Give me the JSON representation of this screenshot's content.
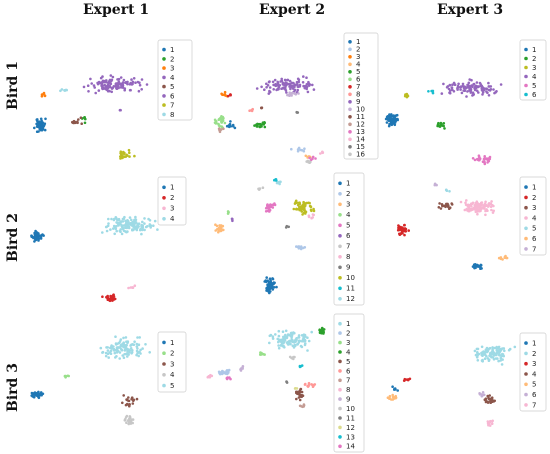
{
  "figure": {
    "column_titles": [
      "Expert 1",
      "Expert 2",
      "Expert 3"
    ],
    "row_titles": [
      "Bird 1",
      "Bird 2",
      "Bird 3"
    ]
  },
  "palette": [
    "#1f77b4",
    "#aec7e8",
    "#ff7f0e",
    "#ffbb78",
    "#2ca02c",
    "#98df8a",
    "#d62728",
    "#ff9896",
    "#9467bd",
    "#c5b0d5",
    "#8c564b",
    "#c49c94",
    "#e377c2",
    "#f7b6d2",
    "#7f7f7f",
    "#c7c7c7",
    "#bcbd22",
    "#dbdb8d",
    "#17becf",
    "#9edae5"
  ],
  "chart_data": [
    {
      "type": "scatter",
      "row": "Bird 1",
      "column": "Expert 1",
      "legend": [
        "1",
        "2",
        "3",
        "4",
        "5",
        "6",
        "7",
        "8"
      ],
      "series_colors": [
        "#1f77b4",
        "#2ca02c",
        "#ff7f0e",
        "#9467bd",
        "#8c564b",
        "#9467bd",
        "#bcbd22",
        "#9edae5"
      ]
    },
    {
      "type": "scatter",
      "row": "Bird 1",
      "column": "Expert 2",
      "legend": [
        "1",
        "2",
        "3",
        "4",
        "5",
        "6",
        "7",
        "8",
        "9",
        "10",
        "11",
        "12",
        "13",
        "14",
        "15",
        "16"
      ],
      "series_colors": [
        "#1f77b4",
        "#aec7e8",
        "#ff7f0e",
        "#ffbb78",
        "#2ca02c",
        "#98df8a",
        "#d62728",
        "#ff9896",
        "#9467bd",
        "#c5b0d5",
        "#8c564b",
        "#c49c94",
        "#e377c2",
        "#f7b6d2",
        "#7f7f7f",
        "#c7c7c7"
      ]
    },
    {
      "type": "scatter",
      "row": "Bird 1",
      "column": "Expert 3",
      "legend": [
        "1",
        "2",
        "3",
        "4",
        "5",
        "6"
      ],
      "series_colors": [
        "#1f77b4",
        "#2ca02c",
        "#bcbd22",
        "#9467bd",
        "#e377c2",
        "#17becf"
      ]
    },
    {
      "type": "scatter",
      "row": "Bird 2",
      "column": "Expert 1",
      "legend": [
        "1",
        "2",
        "3",
        "4"
      ],
      "series_colors": [
        "#1f77b4",
        "#d62728",
        "#f7b6d2",
        "#9edae5"
      ]
    },
    {
      "type": "scatter",
      "row": "Bird 2",
      "column": "Expert 2",
      "legend": [
        "1",
        "2",
        "3",
        "4",
        "5",
        "6",
        "7",
        "8",
        "9",
        "10",
        "11",
        "12"
      ],
      "series_colors": [
        "#1f77b4",
        "#aec7e8",
        "#ffbb78",
        "#98df8a",
        "#e377c2",
        "#9467bd",
        "#c7c7c7",
        "#f7b6d2",
        "#7f7f7f",
        "#bcbd22",
        "#17becf",
        "#9edae5"
      ]
    },
    {
      "type": "scatter",
      "row": "Bird 2",
      "column": "Expert 3",
      "legend": [
        "1",
        "2",
        "3",
        "4",
        "5",
        "6",
        "7"
      ],
      "series_colors": [
        "#1f77b4",
        "#d62728",
        "#8c564b",
        "#f7b6d2",
        "#9edae5",
        "#ffbb78",
        "#c5b0d5"
      ]
    },
    {
      "type": "scatter",
      "row": "Bird 3",
      "column": "Expert 1",
      "legend": [
        "1",
        "2",
        "3",
        "4",
        "5"
      ],
      "series_colors": [
        "#1f77b4",
        "#98df8a",
        "#8c564b",
        "#c7c7c7",
        "#9edae5"
      ]
    },
    {
      "type": "scatter",
      "row": "Bird 3",
      "column": "Expert 2",
      "legend": [
        "1",
        "2",
        "3",
        "4",
        "5",
        "6",
        "7",
        "8",
        "9",
        "10",
        "11",
        "12",
        "13",
        "14"
      ],
      "series_colors": [
        "#9edae5",
        "#aec7e8",
        "#98df8a",
        "#2ca02c",
        "#8c564b",
        "#ff9896",
        "#c49c94",
        "#f7b6d2",
        "#c5b0d5",
        "#c7c7c7",
        "#7f7f7f",
        "#dbdb8d",
        "#17becf",
        "#e377c2"
      ]
    },
    {
      "type": "scatter",
      "row": "Bird 3",
      "column": "Expert 3",
      "legend": [
        "1",
        "2",
        "3",
        "4",
        "5",
        "6",
        "7"
      ],
      "series_colors": [
        "#1f77b4",
        "#9edae5",
        "#d62728",
        "#8c564b",
        "#ffbb78",
        "#c5b0d5",
        "#f7b6d2"
      ]
    }
  ]
}
